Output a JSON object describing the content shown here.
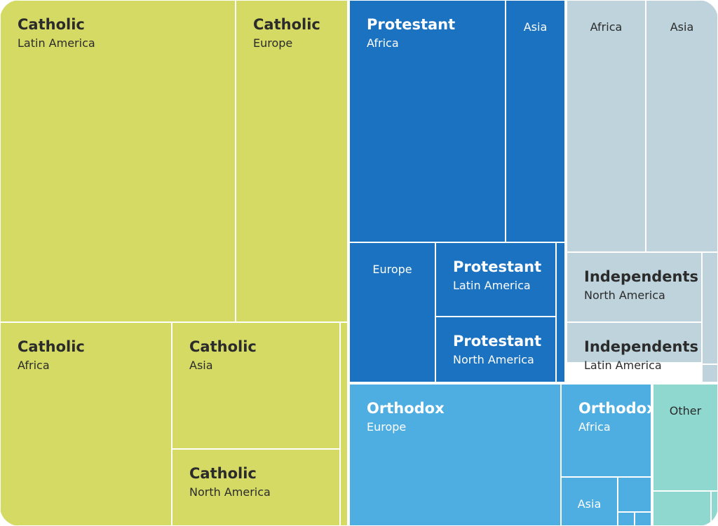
{
  "chart_data": {
    "type": "treemap",
    "colors": {
      "Catholic": "#d4da63",
      "Protestant": "#1b72c0",
      "Independents": "#bed3dc",
      "Orthodox": "#4eaee1",
      "Other": "#8fd8cf"
    },
    "tiles": [
      {
        "group": "Catholic",
        "region": "Latin America",
        "title": "Catholic",
        "subtitle": "Latin America",
        "label_style": "two-line"
      },
      {
        "group": "Catholic",
        "region": "Europe",
        "title": "Catholic",
        "subtitle": "Europe",
        "label_style": "two-line"
      },
      {
        "group": "Catholic",
        "region": "Africa",
        "title": "Catholic",
        "subtitle": "Africa",
        "label_style": "two-line"
      },
      {
        "group": "Catholic",
        "region": "Asia",
        "title": "Catholic",
        "subtitle": "Asia",
        "label_style": "two-line"
      },
      {
        "group": "Catholic",
        "region": "North America",
        "title": "Catholic",
        "subtitle": "North America",
        "label_style": "two-line"
      },
      {
        "group": "Catholic",
        "region": "",
        "label_style": "none"
      },
      {
        "group": "Protestant",
        "region": "Africa",
        "title": "Protestant",
        "subtitle": "Africa",
        "label_style": "two-line"
      },
      {
        "group": "Protestant",
        "region": "Asia",
        "title": "Asia",
        "label_style": "center"
      },
      {
        "group": "Protestant",
        "region": "Europe",
        "title": "Europe",
        "label_style": "center"
      },
      {
        "group": "Protestant",
        "region": "Latin America",
        "title": "Protestant",
        "subtitle": "Latin America",
        "label_style": "two-line"
      },
      {
        "group": "Protestant",
        "region": "North America",
        "title": "Protestant",
        "subtitle": "North America",
        "label_style": "two-line"
      },
      {
        "group": "Protestant",
        "region": "",
        "label_style": "none"
      },
      {
        "group": "Independents",
        "region": "Africa",
        "title": "Africa",
        "label_style": "center"
      },
      {
        "group": "Independents",
        "region": "Asia",
        "title": "Asia",
        "label_style": "center"
      },
      {
        "group": "Independents",
        "region": "North America",
        "title": "Independents",
        "subtitle": "North America",
        "label_style": "two-line"
      },
      {
        "group": "Independents",
        "region": "Latin America",
        "title": "Independents",
        "subtitle": "Latin America",
        "label_style": "two-line"
      },
      {
        "group": "Independents",
        "region": "",
        "label_style": "none"
      },
      {
        "group": "Independents",
        "region": "",
        "label_style": "none"
      },
      {
        "group": "Orthodox",
        "region": "Europe",
        "title": "Orthodox",
        "subtitle": "Europe",
        "label_style": "two-line"
      },
      {
        "group": "Orthodox",
        "region": "Africa",
        "title": "Orthodox",
        "subtitle": "Africa",
        "label_style": "two-line"
      },
      {
        "group": "Orthodox",
        "region": "Asia",
        "title": "Asia",
        "label_style": "center"
      },
      {
        "group": "Orthodox",
        "region": "",
        "label_style": "none"
      },
      {
        "group": "Orthodox",
        "region": "",
        "label_style": "none"
      },
      {
        "group": "Orthodox",
        "region": "",
        "label_style": "none"
      },
      {
        "group": "Other",
        "region": "",
        "title": "Other",
        "label_style": "center"
      },
      {
        "group": "Other",
        "region": "",
        "label_style": "none"
      },
      {
        "group": "Other",
        "region": "",
        "label_style": "none"
      }
    ]
  }
}
